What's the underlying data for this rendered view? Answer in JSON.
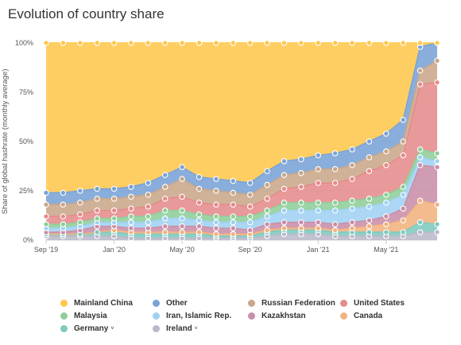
{
  "title": "Evolution of country share",
  "chart_data": {
    "type": "area",
    "stacked": true,
    "ylabel": "Share of global hashrate (monthly average)",
    "ylim": [
      0,
      100
    ],
    "yticks": [
      "0%",
      "25%",
      "50%",
      "75%",
      "100%"
    ],
    "x": [
      "Sep '19",
      "Oct '19",
      "Nov '19",
      "Dec '19",
      "Jan '20",
      "Feb '20",
      "Mar '20",
      "Apr '20",
      "May '20",
      "Jun '20",
      "Jul '20",
      "Aug '20",
      "Sep '20",
      "Oct '20",
      "Nov '20",
      "Dec '20",
      "Jan '21",
      "Feb '21",
      "Mar '21",
      "Apr '21",
      "May '21",
      "Jun '21",
      "Jul '21",
      "Aug '21"
    ],
    "xticks": [
      {
        "label": "Sep '19",
        "index": 0
      },
      {
        "label": "Jan '20",
        "index": 4
      },
      {
        "label": "May '20",
        "index": 8
      },
      {
        "label": "Sep '20",
        "index": 12
      },
      {
        "label": "Jan '21",
        "index": 16
      },
      {
        "label": "May '21",
        "index": 20
      }
    ],
    "series": [
      {
        "name": "Ireland",
        "color": "#b9b9c9",
        "values": [
          2,
          2,
          2,
          2,
          2,
          1,
          1,
          1,
          1,
          1,
          1,
          1,
          1,
          2,
          3,
          3,
          3,
          2,
          2,
          2,
          2,
          2,
          4,
          4
        ]
      },
      {
        "name": "Germany",
        "color": "#7fc9be",
        "values": [
          1,
          1,
          1,
          2,
          2,
          2,
          2,
          2,
          2,
          2,
          1,
          1,
          1,
          2,
          2,
          2,
          2,
          2,
          2,
          2,
          2,
          2,
          5,
          4
        ]
      },
      {
        "name": "Canada",
        "color": "#f1b380",
        "values": [
          0,
          0,
          0,
          0,
          1,
          1,
          1,
          1,
          1,
          1,
          1,
          1,
          1,
          1,
          1,
          1,
          1,
          1,
          2,
          3,
          4,
          6,
          11,
          10
        ]
      },
      {
        "name": "Kazakhstan",
        "color": "#c98ea8",
        "values": [
          1,
          1,
          2,
          3,
          2,
          2,
          2,
          3,
          3,
          3,
          3,
          3,
          2,
          3,
          3,
          3,
          3,
          3,
          3,
          3,
          4,
          6,
          18,
          19
        ]
      },
      {
        "name": "Iran, Islamic Rep.",
        "color": "#9fd1f2",
        "values": [
          2,
          2,
          2,
          2,
          2,
          3,
          3,
          4,
          4,
          3,
          3,
          3,
          4,
          4,
          6,
          6,
          6,
          7,
          7,
          7,
          7,
          7,
          4,
          3
        ]
      },
      {
        "name": "Malaysia",
        "color": "#8fce9a",
        "values": [
          2,
          2,
          2,
          2,
          2,
          3,
          3,
          4,
          4,
          3,
          3,
          3,
          3,
          3,
          4,
          4,
          4,
          4,
          4,
          4,
          4,
          4,
          4,
          4
        ]
      },
      {
        "name": "United States",
        "color": "#e58b8b",
        "values": [
          4,
          4,
          4,
          4,
          4,
          4,
          5,
          6,
          7,
          6,
          6,
          6,
          5,
          6,
          7,
          8,
          10,
          10,
          11,
          14,
          15,
          16,
          33,
          36
        ]
      },
      {
        "name": "Russian Federation",
        "color": "#c9a78a",
        "values": [
          6,
          6,
          6,
          6,
          6,
          6,
          6,
          6,
          9,
          7,
          7,
          6,
          6,
          7,
          7,
          7,
          7,
          7,
          7,
          7,
          7,
          7,
          7,
          11
        ]
      },
      {
        "name": "Other",
        "color": "#7aa3d6",
        "values": [
          6,
          6,
          6,
          5,
          5,
          5,
          6,
          6,
          6,
          6,
          6,
          6,
          6,
          7,
          7,
          7,
          7,
          8,
          8,
          8,
          9,
          11,
          12,
          9
        ]
      },
      {
        "name": "Mainland China",
        "color": "#ffc74d",
        "values": [
          76,
          76,
          75,
          74,
          74,
          73,
          71,
          67,
          63,
          68,
          69,
          70,
          71,
          65,
          60,
          59,
          57,
          56,
          54,
          50,
          46,
          39,
          2,
          0
        ]
      }
    ],
    "legend": {
      "placement": "bottom",
      "order": [
        "Mainland China",
        "Other",
        "Russian Federation",
        "United States",
        "Malaysia",
        "Iran, Islamic Rep.",
        "Kazakhstan",
        "Canada",
        "Germany",
        "Ireland"
      ],
      "dropdown_marker": "˅",
      "with_dropdown": [
        "Germany",
        "Ireland"
      ]
    }
  }
}
